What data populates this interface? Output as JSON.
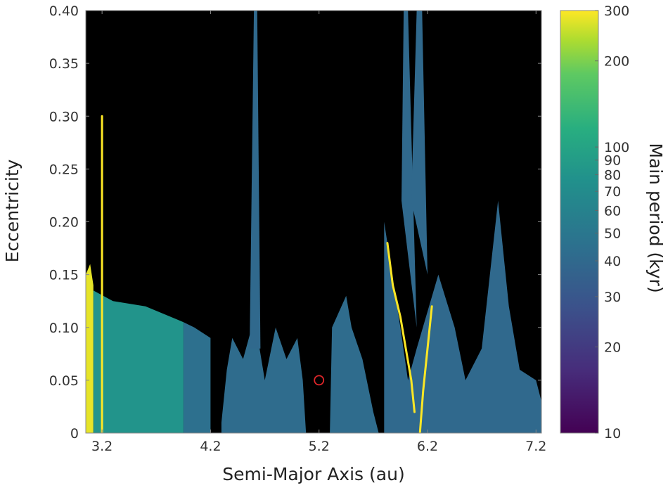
{
  "chart_data": {
    "type": "heatmap",
    "xlabel": "Semi-Major Axis (au)",
    "ylabel": "Eccentricity",
    "xlim": [
      3.05,
      7.25
    ],
    "ylim": [
      0,
      0.4
    ],
    "x_ticks": [
      {
        "value": 3.2,
        "label": "3.2"
      },
      {
        "value": 4.2,
        "label": "4.2"
      },
      {
        "value": 5.2,
        "label": "5.2"
      },
      {
        "value": 6.2,
        "label": "6.2"
      },
      {
        "value": 7.2,
        "label": "7.2"
      }
    ],
    "y_ticks": [
      {
        "value": 0,
        "label": "0"
      },
      {
        "value": 0.05,
        "label": "0.05"
      },
      {
        "value": 0.1,
        "label": "0.10"
      },
      {
        "value": 0.15,
        "label": "0.15"
      },
      {
        "value": 0.2,
        "label": "0.20"
      },
      {
        "value": 0.25,
        "label": "0.25"
      },
      {
        "value": 0.3,
        "label": "0.30"
      },
      {
        "value": 0.35,
        "label": "0.35"
      },
      {
        "value": 0.4,
        "label": "0.40"
      }
    ],
    "background_color": "#000000",
    "grid": false,
    "colorbar": {
      "label": "Main period (kyr)",
      "scale": "log",
      "range": [
        10,
        300
      ],
      "colormap": "viridis",
      "ticks": [
        {
          "value": 10,
          "label": "10"
        },
        {
          "value": 20,
          "label": "20"
        },
        {
          "value": 30,
          "label": "30"
        },
        {
          "value": 40,
          "label": "40"
        },
        {
          "value": 50,
          "label": "50"
        },
        {
          "value": 60,
          "label": "60"
        },
        {
          "value": 70,
          "label": "70"
        },
        {
          "value": 80,
          "label": "80"
        },
        {
          "value": 90,
          "label": "90"
        },
        {
          "value": 100,
          "label": "100"
        },
        {
          "value": 200,
          "label": "200"
        },
        {
          "value": 300,
          "label": "300"
        }
      ]
    },
    "marker": {
      "shape": "circle",
      "a": 5.2,
      "e": 0.05,
      "color": "#e0262a"
    },
    "regions": [
      {
        "name": "inner-yellow-band",
        "period_kyr": 280,
        "polygon": [
          [
            3.05,
            0
          ],
          [
            3.12,
            0
          ],
          [
            3.12,
            0.14
          ],
          [
            3.09,
            0.16
          ],
          [
            3.05,
            0.15
          ]
        ]
      },
      {
        "name": "inner-green-zone",
        "period_kyr": 80,
        "polygon": [
          [
            3.12,
            0
          ],
          [
            3.95,
            0
          ],
          [
            3.95,
            0.105
          ],
          [
            3.6,
            0.12
          ],
          [
            3.3,
            0.125
          ],
          [
            3.12,
            0.135
          ]
        ]
      },
      {
        "name": "shelf-4.0-4.3",
        "period_kyr": 45,
        "polygon": [
          [
            3.95,
            0
          ],
          [
            4.2,
            0
          ],
          [
            4.2,
            0.09
          ],
          [
            4.05,
            0.1
          ],
          [
            3.95,
            0.105
          ]
        ]
      },
      {
        "name": "main-plateau-4.3-5.8",
        "period_kyr": 42,
        "polygon": [
          [
            4.3,
            0.01
          ],
          [
            4.35,
            0.06
          ],
          [
            4.4,
            0.09
          ],
          [
            4.5,
            0.07
          ],
          [
            4.58,
            0.1
          ],
          [
            4.62,
            0.1
          ],
          [
            4.7,
            0.05
          ],
          [
            4.8,
            0.1
          ],
          [
            4.9,
            0.07
          ],
          [
            5.0,
            0.09
          ],
          [
            5.05,
            0.05
          ],
          [
            5.08,
            0.0
          ],
          [
            5.3,
            0.0
          ],
          [
            5.32,
            0.1
          ],
          [
            5.45,
            0.13
          ],
          [
            5.5,
            0.1
          ],
          [
            5.6,
            0.07
          ],
          [
            5.7,
            0.02
          ],
          [
            5.75,
            0.0
          ],
          [
            4.3,
            0.0
          ]
        ]
      },
      {
        "name": "left-spike-4.6",
        "period_kyr": 40,
        "polygon": [
          [
            4.56,
            0.08
          ],
          [
            4.6,
            0.4
          ],
          [
            4.63,
            0.4
          ],
          [
            4.66,
            0.08
          ]
        ]
      },
      {
        "name": "right-arc-region",
        "period_kyr": 40,
        "polygon": [
          [
            5.8,
            0
          ],
          [
            5.8,
            0.2
          ],
          [
            5.95,
            0.1
          ],
          [
            6.02,
            0.05
          ],
          [
            6.1,
            0.08
          ],
          [
            6.3,
            0.15
          ],
          [
            6.45,
            0.1
          ],
          [
            6.55,
            0.05
          ],
          [
            6.7,
            0.08
          ],
          [
            6.85,
            0.22
          ],
          [
            6.95,
            0.12
          ],
          [
            7.05,
            0.06
          ],
          [
            7.2,
            0.05
          ],
          [
            7.25,
            0.03
          ],
          [
            7.25,
            0
          ],
          [
            6.0,
            0
          ]
        ]
      },
      {
        "name": "right-spike-left",
        "period_kyr": 40,
        "polygon": [
          [
            5.96,
            0.22
          ],
          [
            5.98,
            0.4
          ],
          [
            6.02,
            0.4
          ],
          [
            6.1,
            0.1
          ]
        ]
      },
      {
        "name": "right-spike-right",
        "period_kyr": 40,
        "polygon": [
          [
            6.05,
            0.22
          ],
          [
            6.1,
            0.4
          ],
          [
            6.15,
            0.4
          ],
          [
            6.2,
            0.15
          ]
        ]
      }
    ],
    "lines": [
      {
        "name": "yellow-line-3.2",
        "period_kyr": 300,
        "points": [
          [
            3.2,
            0.0
          ],
          [
            3.2,
            0.3
          ]
        ]
      },
      {
        "name": "yellow-arc-left",
        "period_kyr": 300,
        "points": [
          [
            5.83,
            0.18
          ],
          [
            5.88,
            0.14
          ],
          [
            5.95,
            0.11
          ],
          [
            6.0,
            0.08
          ],
          [
            6.05,
            0.05
          ],
          [
            6.08,
            0.02
          ]
        ]
      },
      {
        "name": "yellow-arc-right",
        "period_kyr": 300,
        "points": [
          [
            6.24,
            0.12
          ],
          [
            6.2,
            0.08
          ],
          [
            6.16,
            0.04
          ],
          [
            6.13,
            0.0
          ]
        ]
      }
    ]
  }
}
